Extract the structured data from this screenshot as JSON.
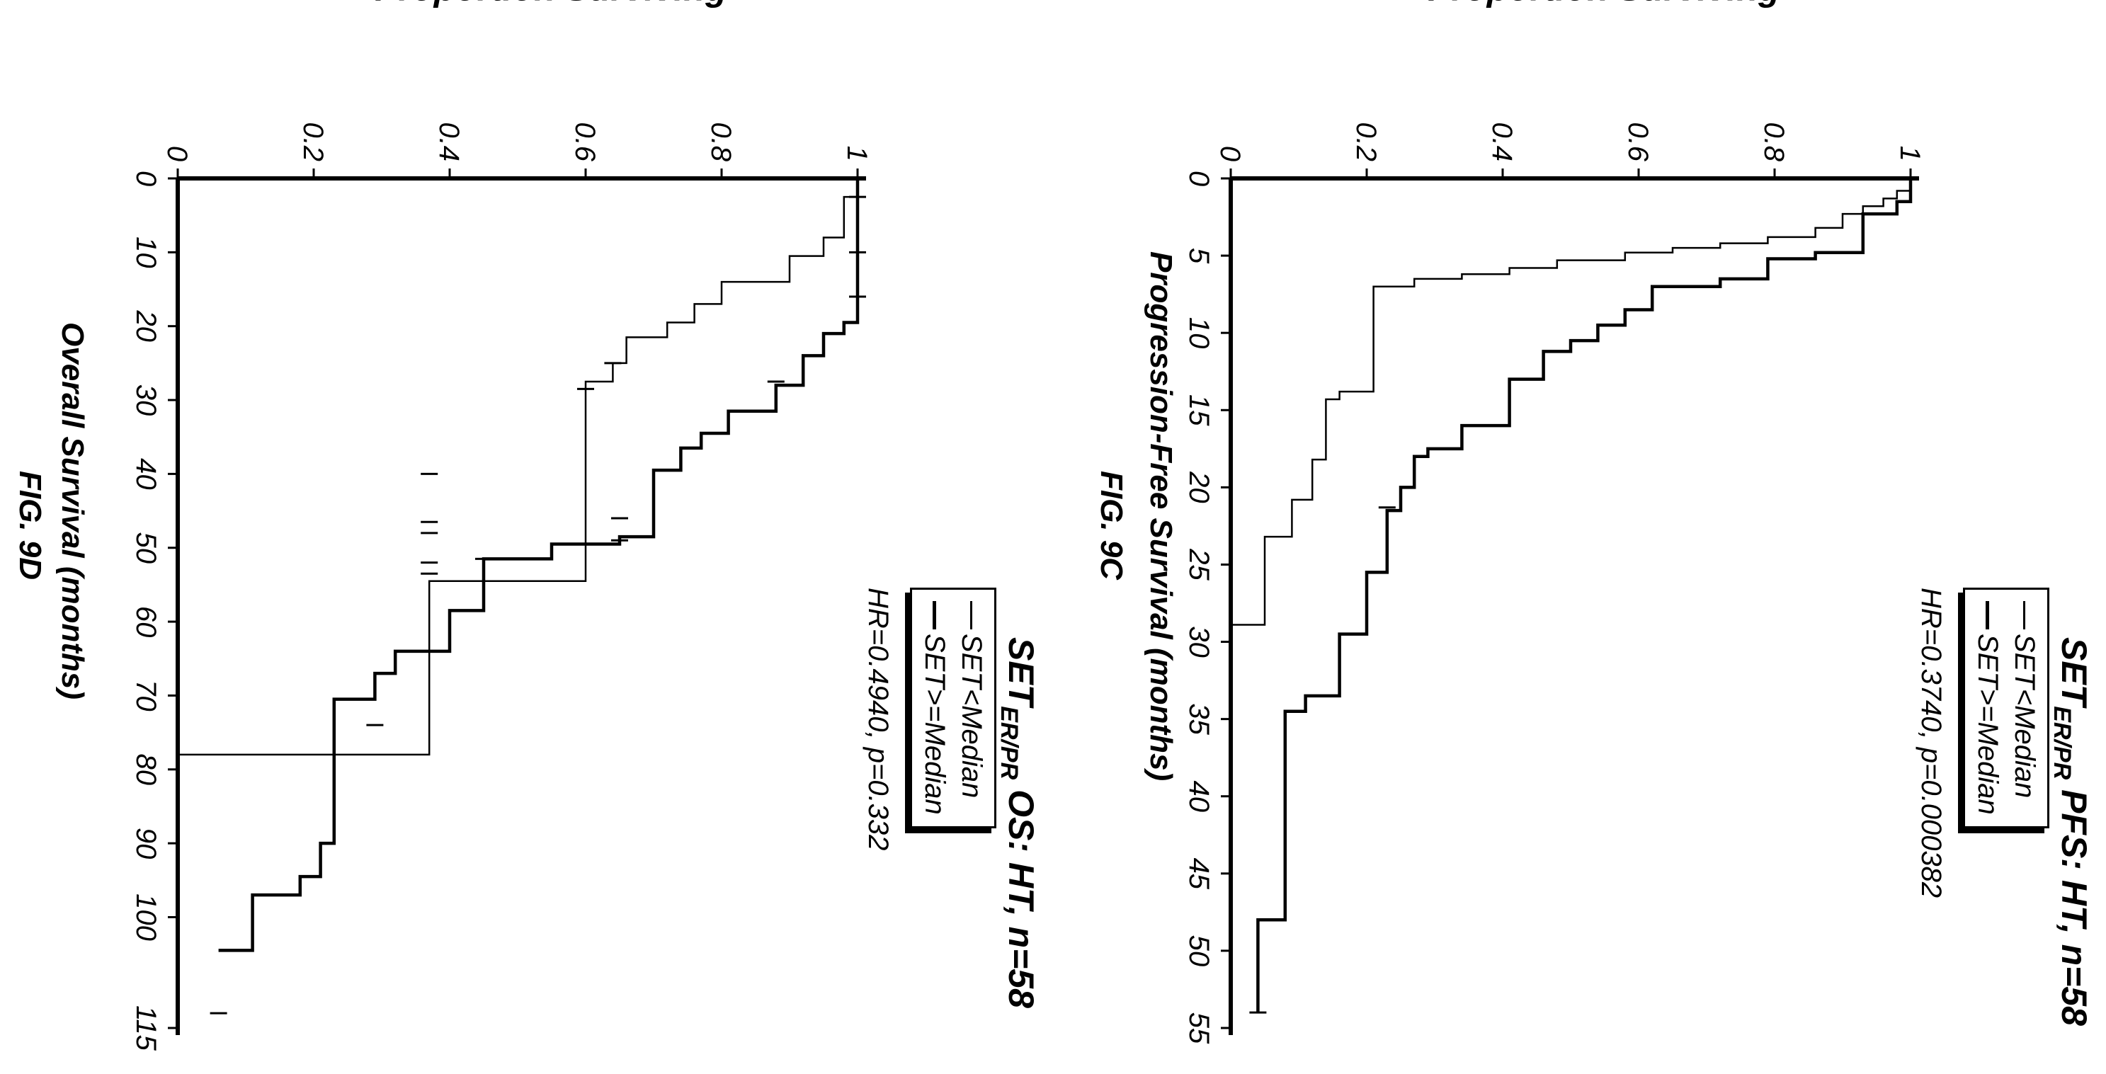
{
  "chart_data": [
    {
      "type": "line",
      "figure_label": "FIG. 9C",
      "title": {
        "main": "SET",
        "subscript": "ER/PR",
        "rest": " PFS: HT, n=58"
      },
      "xlabel": "Progression-Free Survival (months)",
      "ylabel": "Proportion Surviving",
      "xlim": [
        0,
        55
      ],
      "ylim": [
        0,
        1
      ],
      "x_ticks": [
        "0",
        "5",
        "10",
        "15",
        "20",
        "25",
        "30",
        "35",
        "40",
        "45",
        "50",
        "55"
      ],
      "x_tick_values": [
        0,
        5,
        10,
        15,
        20,
        25,
        30,
        35,
        40,
        45,
        50,
        55
      ],
      "y_ticks": [
        "0",
        "0.2",
        "0.4",
        "0.6",
        "0.8",
        "1"
      ],
      "y_tick_values": [
        0,
        0.2,
        0.4,
        0.6,
        0.8,
        1
      ],
      "legend": [
        "SET<Median",
        "SET>=Median"
      ],
      "stats": "HR=0.3740, p=0.000382",
      "series": [
        {
          "name": "SET<Median",
          "x": [
            0,
            0.8,
            1.3,
            1.8,
            2.3,
            3.2,
            3.8,
            4.2,
            4.5,
            4.8,
            5.3,
            5.8,
            6.2,
            6.5,
            7.0,
            13.8,
            14.3,
            18.2,
            20.8,
            23.2,
            28.9
          ],
          "y": [
            1,
            0.98,
            0.96,
            0.93,
            0.9,
            0.86,
            0.79,
            0.72,
            0.65,
            0.58,
            0.48,
            0.41,
            0.34,
            0.27,
            0.21,
            0.16,
            0.14,
            0.12,
            0.09,
            0.05,
            0.0
          ],
          "censor_x": [],
          "censor_y": []
        },
        {
          "name": "SET>=Median",
          "x": [
            0,
            1.5,
            2.3,
            4.8,
            5.2,
            6.5,
            7.0,
            8.5,
            9.5,
            10.5,
            11.2,
            13.0,
            16.0,
            17.5,
            18.0,
            20.0,
            21.5,
            25.5,
            29.5,
            33.5,
            34.5,
            48.0,
            54.0
          ],
          "y": [
            1,
            0.98,
            0.93,
            0.86,
            0.79,
            0.72,
            0.62,
            0.58,
            0.54,
            0.5,
            0.46,
            0.41,
            0.34,
            0.29,
            0.27,
            0.25,
            0.23,
            0.2,
            0.16,
            0.11,
            0.08,
            0.04,
            0.04
          ],
          "censor_x": [
            21.3,
            54.0
          ],
          "censor_y": [
            0.23,
            0.04
          ]
        }
      ]
    },
    {
      "type": "line",
      "figure_label": "FIG. 9D",
      "title": {
        "main": "SET",
        "subscript": "ER/PR",
        "rest": " OS: HT, n=58"
      },
      "xlabel": "Overall Survival (months)",
      "ylabel": "Proportion Surviving",
      "xlim": [
        0,
        115
      ],
      "ylim": [
        0,
        1
      ],
      "x_ticks": [
        "0",
        "10",
        "20",
        "30",
        "40",
        "50",
        "60",
        "70",
        "80",
        "90",
        "100",
        "115"
      ],
      "x_tick_values": [
        0,
        10,
        20,
        30,
        40,
        50,
        60,
        70,
        80,
        90,
        100,
        115
      ],
      "y_ticks": [
        "0",
        "0.2",
        "0.4",
        "0.6",
        "0.8",
        "1"
      ],
      "y_tick_values": [
        0,
        0.2,
        0.4,
        0.6,
        0.8,
        1
      ],
      "legend": [
        "SET<Median",
        "SET>=Median"
      ],
      "stats": "HR=0.4940, p=0.332",
      "series": [
        {
          "name": "SET<Median",
          "x": [
            0,
            2.5,
            8.0,
            10.5,
            14.0,
            17.0,
            19.5,
            21.5,
            25.0,
            27.5,
            54.5,
            78.0
          ],
          "y": [
            1,
            0.98,
            0.95,
            0.9,
            0.8,
            0.76,
            0.72,
            0.66,
            0.64,
            0.6,
            0.37,
            0.28
          ],
          "censor_x": [
            25.0,
            28.5,
            40.0,
            46.5,
            48.0,
            52.0,
            53.5
          ],
          "censor_y": [
            0.64,
            0.6,
            0.37,
            0.37,
            0.37,
            0.37,
            0.37
          ],
          "drop_to": 0.0
        },
        {
          "name": "SET>=Median",
          "x": [
            0,
            19.5,
            21.0,
            24.0,
            28.0,
            31.5,
            34.5,
            36.5,
            39.5,
            48.5,
            49.5,
            51.5,
            58.5,
            64.0,
            67.0,
            70.5,
            90.0,
            94.5,
            97.0,
            104.5
          ],
          "y": [
            1,
            0.98,
            0.95,
            0.92,
            0.88,
            0.81,
            0.77,
            0.74,
            0.7,
            0.65,
            0.55,
            0.45,
            0.4,
            0.32,
            0.29,
            0.23,
            0.21,
            0.18,
            0.11,
            0.06
          ],
          "censor_x": [
            2.5,
            10.0,
            16.0,
            27.5,
            46.0,
            49.0,
            51.5,
            74.0,
            113.0
          ],
          "censor_y": [
            1,
            1,
            1,
            0.88,
            0.65,
            0.65,
            0.45,
            0.29,
            0.06
          ]
        }
      ]
    }
  ]
}
